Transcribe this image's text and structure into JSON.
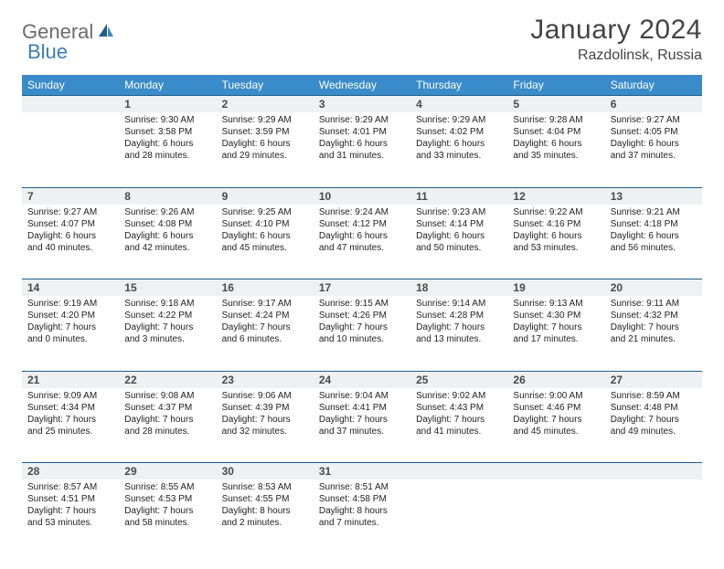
{
  "logo": {
    "part1": "General",
    "part2": "Blue"
  },
  "title": "January 2024",
  "location": "Razdolinsk, Russia",
  "colors": {
    "header_bg": "#3a8bc9",
    "border": "#1f5f8b",
    "daynum_bg": "#eef0f1",
    "logo_gray": "#6b6b6b",
    "logo_blue": "#3a7db8"
  },
  "weekdays": [
    "Sunday",
    "Monday",
    "Tuesday",
    "Wednesday",
    "Thursday",
    "Friday",
    "Saturday"
  ],
  "weeks": [
    [
      null,
      {
        "n": "1",
        "sr": "Sunrise: 9:30 AM",
        "ss": "Sunset: 3:58 PM",
        "d1": "Daylight: 6 hours",
        "d2": "and 28 minutes."
      },
      {
        "n": "2",
        "sr": "Sunrise: 9:29 AM",
        "ss": "Sunset: 3:59 PM",
        "d1": "Daylight: 6 hours",
        "d2": "and 29 minutes."
      },
      {
        "n": "3",
        "sr": "Sunrise: 9:29 AM",
        "ss": "Sunset: 4:01 PM",
        "d1": "Daylight: 6 hours",
        "d2": "and 31 minutes."
      },
      {
        "n": "4",
        "sr": "Sunrise: 9:29 AM",
        "ss": "Sunset: 4:02 PM",
        "d1": "Daylight: 6 hours",
        "d2": "and 33 minutes."
      },
      {
        "n": "5",
        "sr": "Sunrise: 9:28 AM",
        "ss": "Sunset: 4:04 PM",
        "d1": "Daylight: 6 hours",
        "d2": "and 35 minutes."
      },
      {
        "n": "6",
        "sr": "Sunrise: 9:27 AM",
        "ss": "Sunset: 4:05 PM",
        "d1": "Daylight: 6 hours",
        "d2": "and 37 minutes."
      }
    ],
    [
      {
        "n": "7",
        "sr": "Sunrise: 9:27 AM",
        "ss": "Sunset: 4:07 PM",
        "d1": "Daylight: 6 hours",
        "d2": "and 40 minutes."
      },
      {
        "n": "8",
        "sr": "Sunrise: 9:26 AM",
        "ss": "Sunset: 4:08 PM",
        "d1": "Daylight: 6 hours",
        "d2": "and 42 minutes."
      },
      {
        "n": "9",
        "sr": "Sunrise: 9:25 AM",
        "ss": "Sunset: 4:10 PM",
        "d1": "Daylight: 6 hours",
        "d2": "and 45 minutes."
      },
      {
        "n": "10",
        "sr": "Sunrise: 9:24 AM",
        "ss": "Sunset: 4:12 PM",
        "d1": "Daylight: 6 hours",
        "d2": "and 47 minutes."
      },
      {
        "n": "11",
        "sr": "Sunrise: 9:23 AM",
        "ss": "Sunset: 4:14 PM",
        "d1": "Daylight: 6 hours",
        "d2": "and 50 minutes."
      },
      {
        "n": "12",
        "sr": "Sunrise: 9:22 AM",
        "ss": "Sunset: 4:16 PM",
        "d1": "Daylight: 6 hours",
        "d2": "and 53 minutes."
      },
      {
        "n": "13",
        "sr": "Sunrise: 9:21 AM",
        "ss": "Sunset: 4:18 PM",
        "d1": "Daylight: 6 hours",
        "d2": "and 56 minutes."
      }
    ],
    [
      {
        "n": "14",
        "sr": "Sunrise: 9:19 AM",
        "ss": "Sunset: 4:20 PM",
        "d1": "Daylight: 7 hours",
        "d2": "and 0 minutes."
      },
      {
        "n": "15",
        "sr": "Sunrise: 9:18 AM",
        "ss": "Sunset: 4:22 PM",
        "d1": "Daylight: 7 hours",
        "d2": "and 3 minutes."
      },
      {
        "n": "16",
        "sr": "Sunrise: 9:17 AM",
        "ss": "Sunset: 4:24 PM",
        "d1": "Daylight: 7 hours",
        "d2": "and 6 minutes."
      },
      {
        "n": "17",
        "sr": "Sunrise: 9:15 AM",
        "ss": "Sunset: 4:26 PM",
        "d1": "Daylight: 7 hours",
        "d2": "and 10 minutes."
      },
      {
        "n": "18",
        "sr": "Sunrise: 9:14 AM",
        "ss": "Sunset: 4:28 PM",
        "d1": "Daylight: 7 hours",
        "d2": "and 13 minutes."
      },
      {
        "n": "19",
        "sr": "Sunrise: 9:13 AM",
        "ss": "Sunset: 4:30 PM",
        "d1": "Daylight: 7 hours",
        "d2": "and 17 minutes."
      },
      {
        "n": "20",
        "sr": "Sunrise: 9:11 AM",
        "ss": "Sunset: 4:32 PM",
        "d1": "Daylight: 7 hours",
        "d2": "and 21 minutes."
      }
    ],
    [
      {
        "n": "21",
        "sr": "Sunrise: 9:09 AM",
        "ss": "Sunset: 4:34 PM",
        "d1": "Daylight: 7 hours",
        "d2": "and 25 minutes."
      },
      {
        "n": "22",
        "sr": "Sunrise: 9:08 AM",
        "ss": "Sunset: 4:37 PM",
        "d1": "Daylight: 7 hours",
        "d2": "and 28 minutes."
      },
      {
        "n": "23",
        "sr": "Sunrise: 9:06 AM",
        "ss": "Sunset: 4:39 PM",
        "d1": "Daylight: 7 hours",
        "d2": "and 32 minutes."
      },
      {
        "n": "24",
        "sr": "Sunrise: 9:04 AM",
        "ss": "Sunset: 4:41 PM",
        "d1": "Daylight: 7 hours",
        "d2": "and 37 minutes."
      },
      {
        "n": "25",
        "sr": "Sunrise: 9:02 AM",
        "ss": "Sunset: 4:43 PM",
        "d1": "Daylight: 7 hours",
        "d2": "and 41 minutes."
      },
      {
        "n": "26",
        "sr": "Sunrise: 9:00 AM",
        "ss": "Sunset: 4:46 PM",
        "d1": "Daylight: 7 hours",
        "d2": "and 45 minutes."
      },
      {
        "n": "27",
        "sr": "Sunrise: 8:59 AM",
        "ss": "Sunset: 4:48 PM",
        "d1": "Daylight: 7 hours",
        "d2": "and 49 minutes."
      }
    ],
    [
      {
        "n": "28",
        "sr": "Sunrise: 8:57 AM",
        "ss": "Sunset: 4:51 PM",
        "d1": "Daylight: 7 hours",
        "d2": "and 53 minutes."
      },
      {
        "n": "29",
        "sr": "Sunrise: 8:55 AM",
        "ss": "Sunset: 4:53 PM",
        "d1": "Daylight: 7 hours",
        "d2": "and 58 minutes."
      },
      {
        "n": "30",
        "sr": "Sunrise: 8:53 AM",
        "ss": "Sunset: 4:55 PM",
        "d1": "Daylight: 8 hours",
        "d2": "and 2 minutes."
      },
      {
        "n": "31",
        "sr": "Sunrise: 8:51 AM",
        "ss": "Sunset: 4:58 PM",
        "d1": "Daylight: 8 hours",
        "d2": "and 7 minutes."
      },
      null,
      null,
      null
    ]
  ]
}
